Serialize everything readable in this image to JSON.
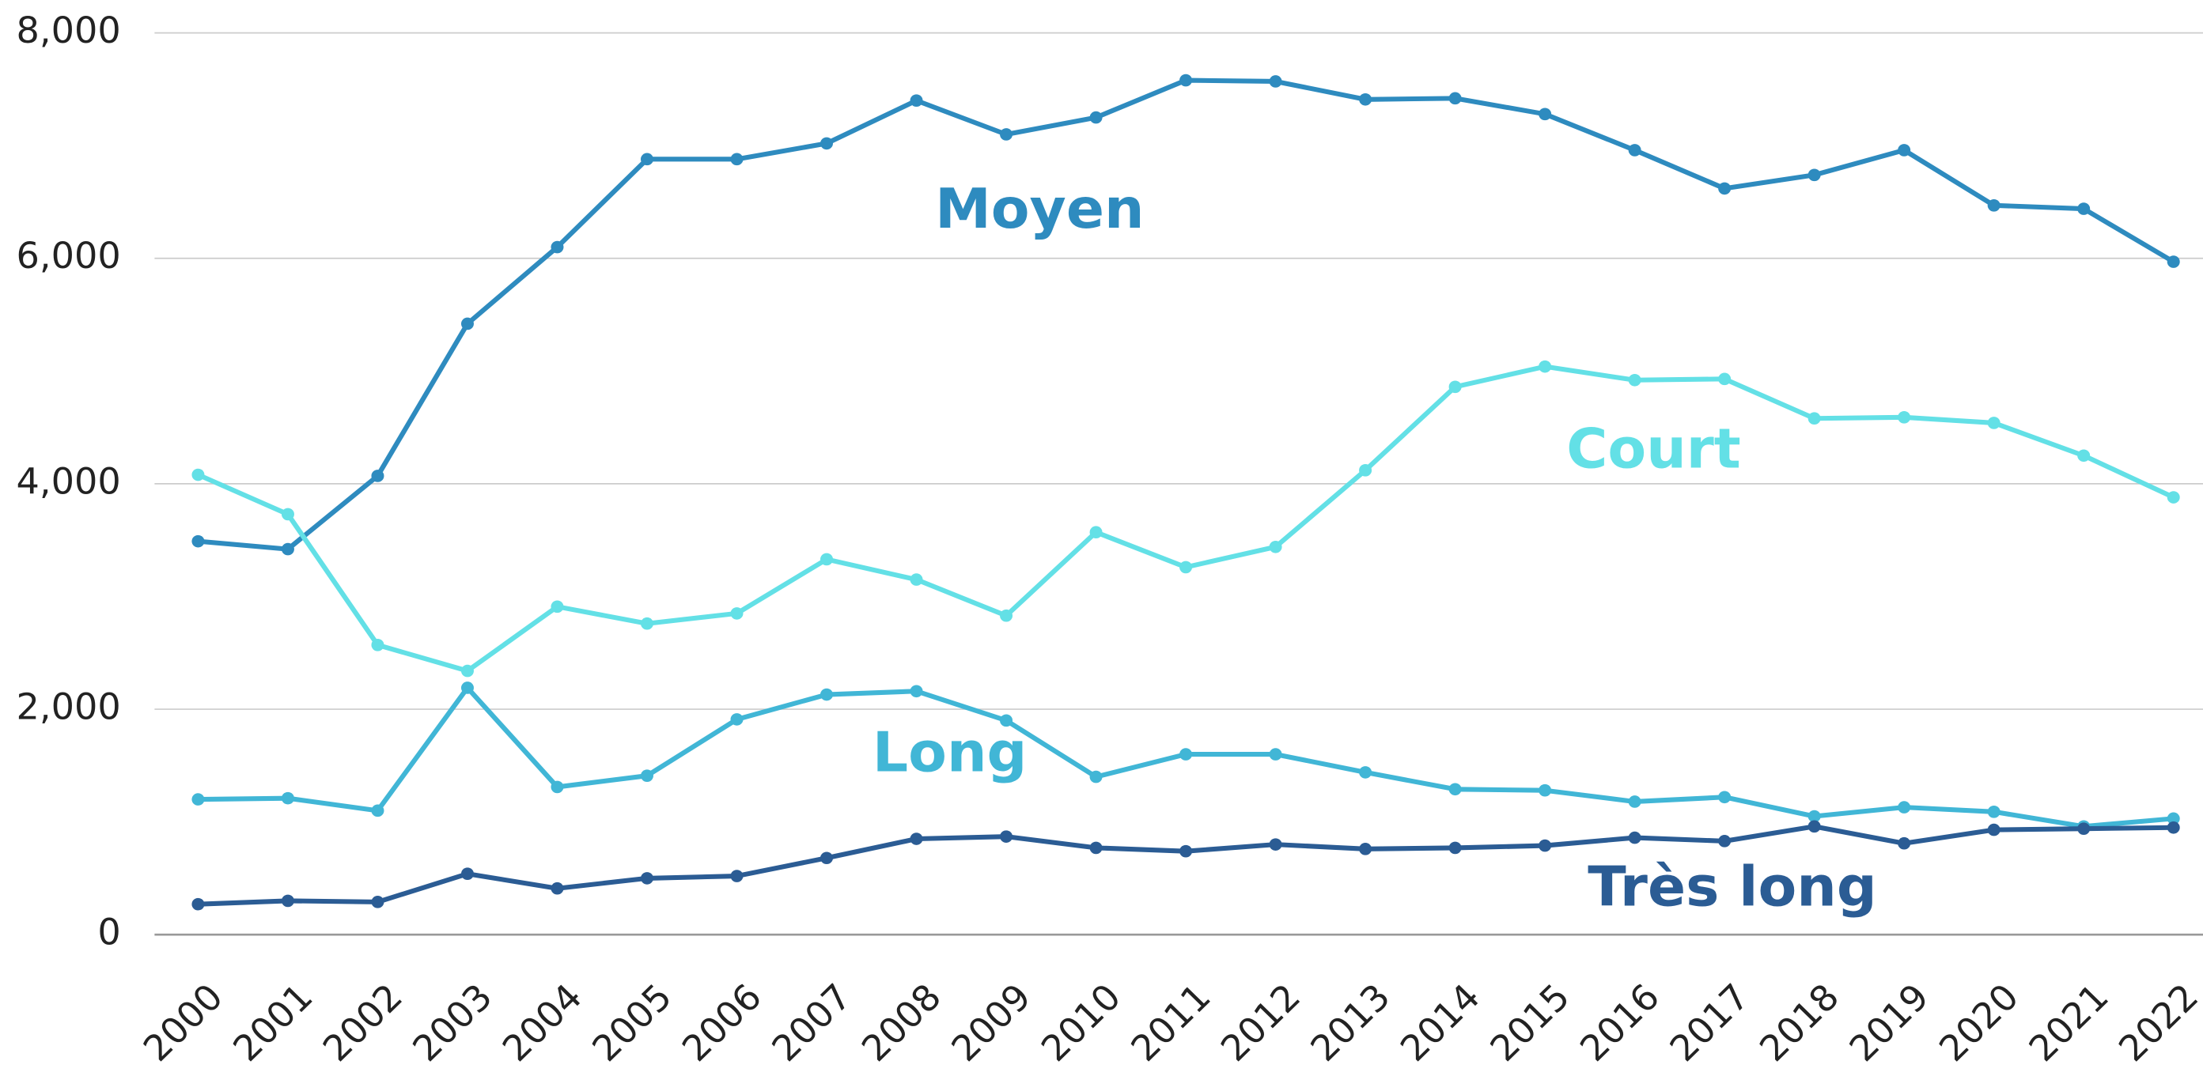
{
  "chart_data": {
    "type": "line",
    "categories": [
      "2000",
      "2001",
      "2002",
      "2003",
      "2004",
      "2005",
      "2006",
      "2007",
      "2008",
      "2009",
      "2010",
      "2011",
      "2012",
      "2013",
      "2014",
      "2015",
      "2016",
      "2017",
      "2018",
      "2019",
      "2020",
      "2021",
      "2022"
    ],
    "series": [
      {
        "name": "Moyen",
        "color": "#2e8bbf",
        "values": [
          3490,
          3420,
          4070,
          5420,
          6100,
          6880,
          6880,
          7020,
          7400,
          7100,
          7250,
          7580,
          7570,
          7410,
          7420,
          7280,
          6960,
          6620,
          6740,
          6960,
          6470,
          6440,
          5970
        ]
      },
      {
        "name": "Court",
        "color": "#63e0e6",
        "values": [
          4080,
          3730,
          2570,
          2340,
          2910,
          2760,
          2850,
          3330,
          3150,
          2830,
          3570,
          3260,
          3440,
          4120,
          4860,
          5040,
          4920,
          4930,
          4580,
          4590,
          4540,
          4250,
          3880
        ]
      },
      {
        "name": "Long",
        "color": "#41b6d6",
        "values": [
          1200,
          1210,
          1100,
          2190,
          1310,
          1410,
          1910,
          2130,
          2160,
          1900,
          1400,
          1600,
          1600,
          1440,
          1290,
          1280,
          1180,
          1220,
          1050,
          1130,
          1090,
          960,
          1030
        ]
      },
      {
        "name": "Très long",
        "color": "#2b5c94",
        "values": [
          270,
          300,
          290,
          540,
          410,
          500,
          520,
          680,
          850,
          870,
          770,
          740,
          800,
          760,
          770,
          790,
          860,
          830,
          960,
          810,
          930,
          940,
          950
        ]
      }
    ],
    "ylim": [
      0,
      8000
    ],
    "yticks": [
      0,
      {
        "value": 2000,
        "label": "2,000"
      },
      {
        "value": 4000,
        "label": "4,000"
      },
      {
        "value": 6000,
        "label": "6,000"
      },
      {
        "value": 8000,
        "label": "8,000"
      }
    ],
    "grid": true
  }
}
